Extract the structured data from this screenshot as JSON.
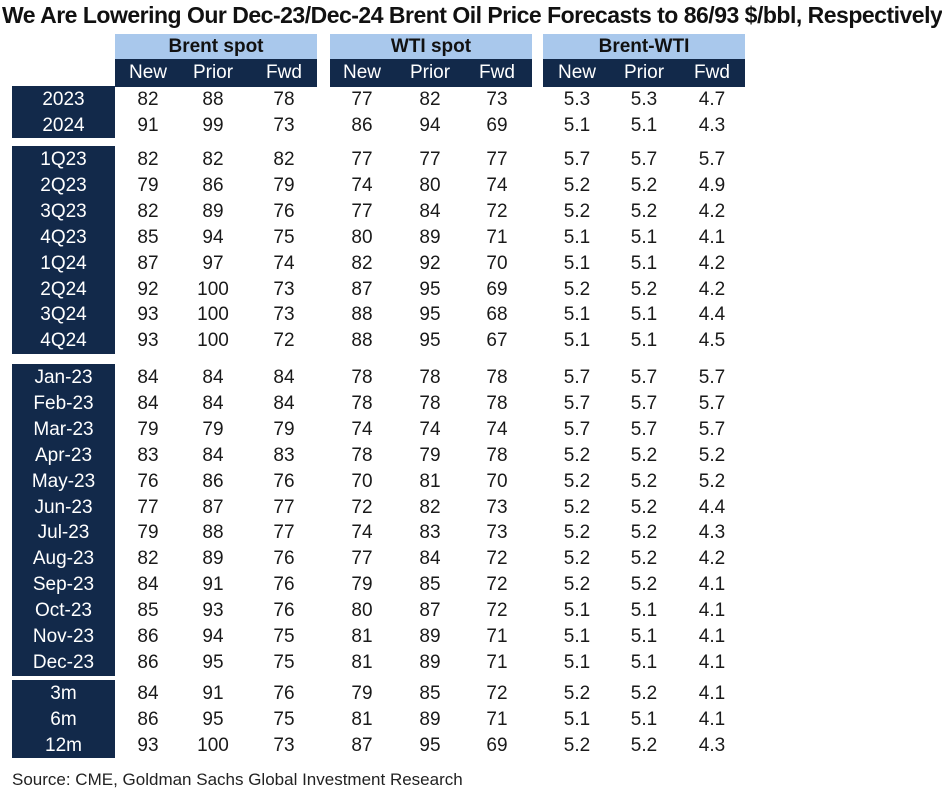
{
  "title": "We Are Lowering Our Dec-23/Dec-24 Brent Oil Price Forecasts to 86/93 $/bbl, Respectively",
  "source": "Source: CME, Goldman Sachs Global Investment Research",
  "colors": {
    "header_light": "#a9c8ec",
    "header_dark": "#12294a",
    "text": "#1a1a1a"
  },
  "chart_data": {
    "type": "table",
    "column_groups": [
      {
        "name": "Brent spot",
        "columns": [
          "New",
          "Prior",
          "Fwd"
        ]
      },
      {
        "name": "WTI spot",
        "columns": [
          "New",
          "Prior",
          "Fwd"
        ]
      },
      {
        "name": "Brent-WTI",
        "columns": [
          "New",
          "Prior",
          "Fwd"
        ]
      }
    ],
    "row_groups": [
      {
        "rows": [
          {
            "label": "2023",
            "values": [
              "82",
              "88",
              "78",
              "77",
              "82",
              "73",
              "5.3",
              "5.3",
              "4.7"
            ]
          },
          {
            "label": "2024",
            "values": [
              "91",
              "99",
              "73",
              "86",
              "94",
              "69",
              "5.1",
              "5.1",
              "4.3"
            ]
          }
        ]
      },
      {
        "rows": [
          {
            "label": "1Q23",
            "values": [
              "82",
              "82",
              "82",
              "77",
              "77",
              "77",
              "5.7",
              "5.7",
              "5.7"
            ]
          },
          {
            "label": "2Q23",
            "values": [
              "79",
              "86",
              "79",
              "74",
              "80",
              "74",
              "5.2",
              "5.2",
              "4.9"
            ]
          },
          {
            "label": "3Q23",
            "values": [
              "82",
              "89",
              "76",
              "77",
              "84",
              "72",
              "5.2",
              "5.2",
              "4.2"
            ]
          },
          {
            "label": "4Q23",
            "values": [
              "85",
              "94",
              "75",
              "80",
              "89",
              "71",
              "5.1",
              "5.1",
              "4.1"
            ]
          },
          {
            "label": "1Q24",
            "values": [
              "87",
              "97",
              "74",
              "82",
              "92",
              "70",
              "5.1",
              "5.1",
              "4.2"
            ]
          },
          {
            "label": "2Q24",
            "values": [
              "92",
              "100",
              "73",
              "87",
              "95",
              "69",
              "5.2",
              "5.2",
              "4.2"
            ]
          },
          {
            "label": "3Q24",
            "values": [
              "93",
              "100",
              "73",
              "88",
              "95",
              "68",
              "5.1",
              "5.1",
              "4.4"
            ]
          },
          {
            "label": "4Q24",
            "values": [
              "93",
              "100",
              "72",
              "88",
              "95",
              "67",
              "5.1",
              "5.1",
              "4.5"
            ]
          }
        ]
      },
      {
        "rows": [
          {
            "label": "Jan-23",
            "values": [
              "84",
              "84",
              "84",
              "78",
              "78",
              "78",
              "5.7",
              "5.7",
              "5.7"
            ]
          },
          {
            "label": "Feb-23",
            "values": [
              "84",
              "84",
              "84",
              "78",
              "78",
              "78",
              "5.7",
              "5.7",
              "5.7"
            ]
          },
          {
            "label": "Mar-23",
            "values": [
              "79",
              "79",
              "79",
              "74",
              "74",
              "74",
              "5.7",
              "5.7",
              "5.7"
            ]
          },
          {
            "label": "Apr-23",
            "values": [
              "83",
              "84",
              "83",
              "78",
              "79",
              "78",
              "5.2",
              "5.2",
              "5.2"
            ]
          },
          {
            "label": "May-23",
            "values": [
              "76",
              "86",
              "76",
              "70",
              "81",
              "70",
              "5.2",
              "5.2",
              "5.2"
            ]
          },
          {
            "label": "Jun-23",
            "values": [
              "77",
              "87",
              "77",
              "72",
              "82",
              "73",
              "5.2",
              "5.2",
              "4.4"
            ]
          },
          {
            "label": "Jul-23",
            "values": [
              "79",
              "88",
              "77",
              "74",
              "83",
              "73",
              "5.2",
              "5.2",
              "4.3"
            ]
          },
          {
            "label": "Aug-23",
            "values": [
              "82",
              "89",
              "76",
              "77",
              "84",
              "72",
              "5.2",
              "5.2",
              "4.2"
            ]
          },
          {
            "label": "Sep-23",
            "values": [
              "84",
              "91",
              "76",
              "79",
              "85",
              "72",
              "5.2",
              "5.2",
              "4.1"
            ]
          },
          {
            "label": "Oct-23",
            "values": [
              "85",
              "93",
              "76",
              "80",
              "87",
              "72",
              "5.1",
              "5.1",
              "4.1"
            ]
          },
          {
            "label": "Nov-23",
            "values": [
              "86",
              "94",
              "75",
              "81",
              "89",
              "71",
              "5.1",
              "5.1",
              "4.1"
            ]
          },
          {
            "label": "Dec-23",
            "values": [
              "86",
              "95",
              "75",
              "81",
              "89",
              "71",
              "5.1",
              "5.1",
              "4.1"
            ]
          }
        ]
      },
      {
        "rows": [
          {
            "label": "3m",
            "values": [
              "84",
              "91",
              "76",
              "79",
              "85",
              "72",
              "5.2",
              "5.2",
              "4.1"
            ]
          },
          {
            "label": "6m",
            "values": [
              "86",
              "95",
              "75",
              "81",
              "89",
              "71",
              "5.1",
              "5.1",
              "4.1"
            ]
          },
          {
            "label": "12m",
            "values": [
              "93",
              "100",
              "73",
              "87",
              "95",
              "69",
              "5.2",
              "5.2",
              "4.3"
            ]
          }
        ]
      }
    ]
  }
}
